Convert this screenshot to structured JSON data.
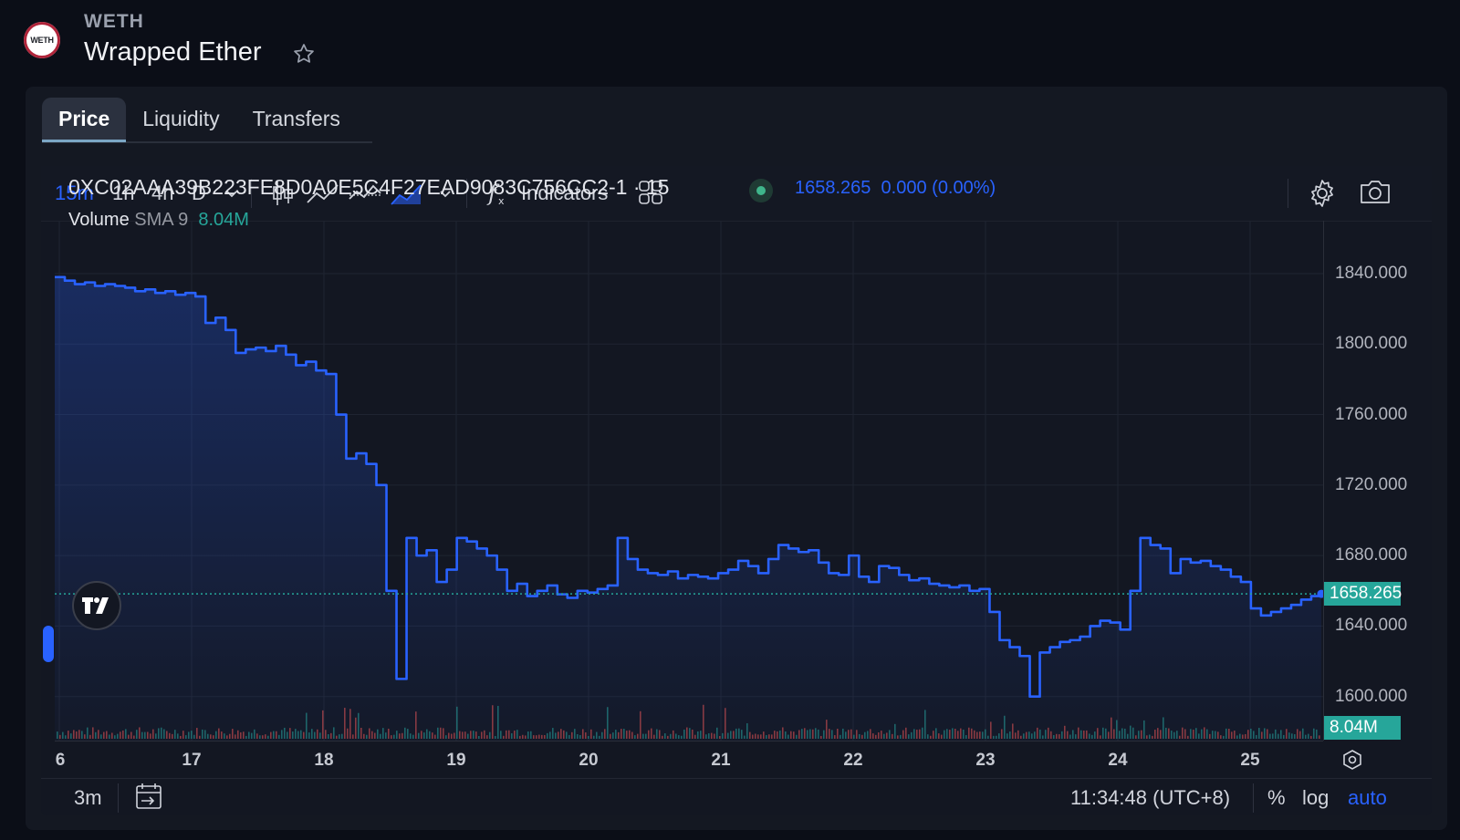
{
  "token": {
    "logo_text": "WETH",
    "symbol": "WETH",
    "name": "Wrapped Ether"
  },
  "tabs": [
    {
      "label": "Price",
      "active": true
    },
    {
      "label": "Liquidity",
      "active": false
    },
    {
      "label": "Transfers",
      "active": false
    }
  ],
  "toolbar": {
    "intervals": [
      "15m",
      "1h",
      "4h",
      "D"
    ],
    "active_interval": "15m",
    "indicators_label": "Indicators",
    "icons": [
      "chevron-down-icon",
      "candlestick-icon",
      "line-chart-icon",
      "baseline-chart-icon",
      "area-chart-icon",
      "chevron-down-icon",
      "function-icon",
      "layout-grid-icon",
      "gear-icon",
      "camera-icon"
    ]
  },
  "legend": {
    "symbol_line": "0XC02AAA39B223FE8D0A0E5C4F27EAD9083C756CC2-1 · 15",
    "last_price": "1658.265",
    "change": "0.000 (0.00%)",
    "volume_label": "Volume",
    "sma_label": "SMA 9",
    "volume_value": "8.04M"
  },
  "colors": {
    "line": "#2962ff",
    "up": "#26a69a",
    "down": "#ef5350",
    "price_tag": "#26a69a",
    "volume_text": "#26a69a"
  },
  "chart_data": {
    "type": "area",
    "x_ticks": [
      "6",
      "17",
      "18",
      "19",
      "20",
      "21",
      "22",
      "23",
      "24",
      "25"
    ],
    "y_ticks": [
      "1840.000",
      "1800.000",
      "1760.000",
      "1720.000",
      "1680.000",
      "1640.000",
      "1600.000"
    ],
    "ylim": [
      1575,
      1870
    ],
    "last_price_tag": "1658.265",
    "volume_tag": "8.04M",
    "series": [
      {
        "values": [
          1838,
          1836,
          1834,
          1835,
          1833,
          1834,
          1833,
          1832,
          1830,
          1831,
          1829,
          1830,
          1828,
          1829,
          1827,
          1812,
          1815,
          1808,
          1795,
          1797,
          1798,
          1796,
          1799,
          1794,
          1788,
          1790,
          1785,
          1783,
          1760,
          1735,
          1738,
          1732,
          1720,
          1660,
          1610,
          1690,
          1680,
          1683,
          1665,
          1672,
          1690,
          1688,
          1684,
          1680,
          1672,
          1660,
          1664,
          1657,
          1660,
          1663,
          1658,
          1656,
          1660,
          1659,
          1661,
          1663,
          1690,
          1678,
          1672,
          1670,
          1669,
          1671,
          1667,
          1669,
          1668,
          1667,
          1670,
          1672,
          1677,
          1674,
          1670,
          1678,
          1686,
          1684,
          1682,
          1683,
          1676,
          1670,
          1669,
          1680,
          1668,
          1665,
          1674,
          1673,
          1669,
          1666,
          1667,
          1664,
          1663,
          1662,
          1663,
          1660,
          1661,
          1648,
          1632,
          1628,
          1623,
          1600,
          1625,
          1628,
          1631,
          1632,
          1634,
          1640,
          1643,
          1642,
          1638,
          1660,
          1690,
          1686,
          1684,
          1670,
          1678,
          1676,
          1677,
          1674,
          1672,
          1668,
          1665,
          1650,
          1646,
          1648,
          1650,
          1652,
          1655,
          1657,
          1658.265
        ]
      }
    ]
  },
  "bottom": {
    "range": "3m",
    "time": "11:34:48 (UTC+8)",
    "percent": "%",
    "log": "log",
    "auto": "auto"
  }
}
